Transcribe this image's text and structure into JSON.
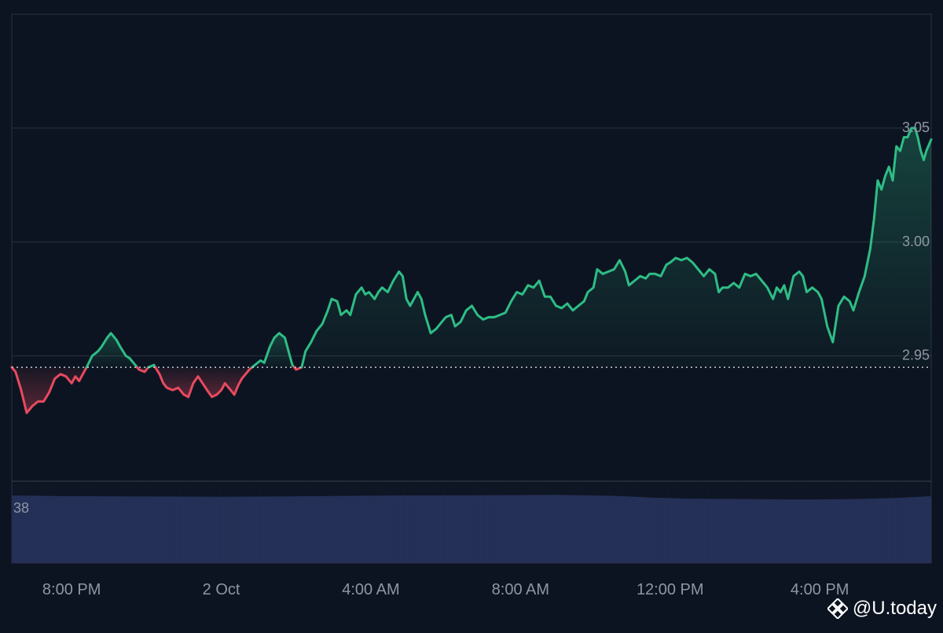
{
  "chart_data": {
    "type": "area",
    "baseline": 2.945,
    "ylim": [
      2.895,
      3.1
    ],
    "y_ticks": [
      {
        "value": 3.05,
        "label": "3.05"
      },
      {
        "value": 3.0,
        "label": "3.00"
      },
      {
        "value": 2.95,
        "label": "2.95"
      }
    ],
    "x_ticks": [
      {
        "t": 1.0,
        "label": "8:00 PM"
      },
      {
        "t": 5.0,
        "label": "2 Oct"
      },
      {
        "t": 9.0,
        "label": "4:00 AM"
      },
      {
        "t": 13.0,
        "label": "8:00 AM"
      },
      {
        "t": 17.0,
        "label": "12:00 PM"
      },
      {
        "t": 21.0,
        "label": "4:00 PM"
      }
    ],
    "xlim": [
      -0.6,
      23.98
    ],
    "price_points": [
      [
        -0.6,
        2.945
      ],
      [
        -0.5,
        2.943
      ],
      [
        -0.35,
        2.935
      ],
      [
        -0.2,
        2.925
      ],
      [
        -0.05,
        2.928
      ],
      [
        0.1,
        2.93
      ],
      [
        0.25,
        2.93
      ],
      [
        0.4,
        2.934
      ],
      [
        0.55,
        2.94
      ],
      [
        0.7,
        2.942
      ],
      [
        0.85,
        2.941
      ],
      [
        1.0,
        2.938
      ],
      [
        1.1,
        2.941
      ],
      [
        1.2,
        2.939
      ],
      [
        1.3,
        2.942
      ],
      [
        1.4,
        2.945
      ],
      [
        1.55,
        2.95
      ],
      [
        1.7,
        2.952
      ],
      [
        1.8,
        2.954
      ],
      [
        1.95,
        2.958
      ],
      [
        2.05,
        2.96
      ],
      [
        2.2,
        2.957
      ],
      [
        2.3,
        2.954
      ],
      [
        2.45,
        2.95
      ],
      [
        2.55,
        2.949
      ],
      [
        2.7,
        2.946
      ],
      [
        2.8,
        2.944
      ],
      [
        2.95,
        2.943
      ],
      [
        3.05,
        2.945
      ],
      [
        3.2,
        2.946
      ],
      [
        3.35,
        2.942
      ],
      [
        3.45,
        2.938
      ],
      [
        3.55,
        2.936
      ],
      [
        3.7,
        2.935
      ],
      [
        3.85,
        2.936
      ],
      [
        4.0,
        2.933
      ],
      [
        4.12,
        2.932
      ],
      [
        4.25,
        2.938
      ],
      [
        4.38,
        2.941
      ],
      [
        4.5,
        2.938
      ],
      [
        4.62,
        2.935
      ],
      [
        4.75,
        2.932
      ],
      [
        4.88,
        2.933
      ],
      [
        5.0,
        2.935
      ],
      [
        5.1,
        2.938
      ],
      [
        5.25,
        2.935
      ],
      [
        5.35,
        2.933
      ],
      [
        5.45,
        2.937
      ],
      [
        5.55,
        2.94
      ],
      [
        5.65,
        2.942
      ],
      [
        5.75,
        2.944
      ],
      [
        5.9,
        2.946
      ],
      [
        6.05,
        2.948
      ],
      [
        6.15,
        2.947
      ],
      [
        6.3,
        2.954
      ],
      [
        6.42,
        2.958
      ],
      [
        6.55,
        2.96
      ],
      [
        6.7,
        2.958
      ],
      [
        6.8,
        2.952
      ],
      [
        6.9,
        2.946
      ],
      [
        7.0,
        2.944
      ],
      [
        7.15,
        2.945
      ],
      [
        7.25,
        2.952
      ],
      [
        7.4,
        2.956
      ],
      [
        7.55,
        2.961
      ],
      [
        7.7,
        2.964
      ],
      [
        7.85,
        2.97
      ],
      [
        7.95,
        2.975
      ],
      [
        8.1,
        2.974
      ],
      [
        8.2,
        2.968
      ],
      [
        8.35,
        2.97
      ],
      [
        8.45,
        2.968
      ],
      [
        8.6,
        2.977
      ],
      [
        8.75,
        2.98
      ],
      [
        8.85,
        2.977
      ],
      [
        8.95,
        2.978
      ],
      [
        9.1,
        2.975
      ],
      [
        9.2,
        2.978
      ],
      [
        9.3,
        2.98
      ],
      [
        9.45,
        2.978
      ],
      [
        9.6,
        2.983
      ],
      [
        9.75,
        2.987
      ],
      [
        9.85,
        2.985
      ],
      [
        9.95,
        2.975
      ],
      [
        10.05,
        2.972
      ],
      [
        10.15,
        2.975
      ],
      [
        10.25,
        2.978
      ],
      [
        10.35,
        2.975
      ],
      [
        10.45,
        2.968
      ],
      [
        10.6,
        2.96
      ],
      [
        10.75,
        2.962
      ],
      [
        10.85,
        2.964
      ],
      [
        11.0,
        2.967
      ],
      [
        11.15,
        2.968
      ],
      [
        11.25,
        2.963
      ],
      [
        11.4,
        2.965
      ],
      [
        11.55,
        2.97
      ],
      [
        11.7,
        2.972
      ],
      [
        11.85,
        2.968
      ],
      [
        12.0,
        2.966
      ],
      [
        12.15,
        2.967
      ],
      [
        12.3,
        2.967
      ],
      [
        12.45,
        2.968
      ],
      [
        12.6,
        2.969
      ],
      [
        12.75,
        2.974
      ],
      [
        12.9,
        2.978
      ],
      [
        13.05,
        2.977
      ],
      [
        13.2,
        2.981
      ],
      [
        13.35,
        2.98
      ],
      [
        13.5,
        2.983
      ],
      [
        13.65,
        2.976
      ],
      [
        13.8,
        2.976
      ],
      [
        13.95,
        2.972
      ],
      [
        14.1,
        2.971
      ],
      [
        14.25,
        2.973
      ],
      [
        14.4,
        2.97
      ],
      [
        14.55,
        2.972
      ],
      [
        14.7,
        2.974
      ],
      [
        14.8,
        2.978
      ],
      [
        14.95,
        2.98
      ],
      [
        15.05,
        2.988
      ],
      [
        15.2,
        2.986
      ],
      [
        15.35,
        2.987
      ],
      [
        15.5,
        2.988
      ],
      [
        15.65,
        2.992
      ],
      [
        15.8,
        2.987
      ],
      [
        15.9,
        2.981
      ],
      [
        16.05,
        2.983
      ],
      [
        16.2,
        2.985
      ],
      [
        16.35,
        2.984
      ],
      [
        16.45,
        2.986
      ],
      [
        16.6,
        2.986
      ],
      [
        16.75,
        2.985
      ],
      [
        16.9,
        2.99
      ],
      [
        17.0,
        2.991
      ],
      [
        17.15,
        2.993
      ],
      [
        17.3,
        2.992
      ],
      [
        17.45,
        2.993
      ],
      [
        17.6,
        2.991
      ],
      [
        17.75,
        2.988
      ],
      [
        17.9,
        2.985
      ],
      [
        18.05,
        2.988
      ],
      [
        18.2,
        2.986
      ],
      [
        18.3,
        2.978
      ],
      [
        18.4,
        2.98
      ],
      [
        18.55,
        2.98
      ],
      [
        18.7,
        2.982
      ],
      [
        18.85,
        2.98
      ],
      [
        19.0,
        2.986
      ],
      [
        19.15,
        2.985
      ],
      [
        19.3,
        2.986
      ],
      [
        19.45,
        2.983
      ],
      [
        19.6,
        2.98
      ],
      [
        19.75,
        2.975
      ],
      [
        19.85,
        2.98
      ],
      [
        19.95,
        2.978
      ],
      [
        20.05,
        2.981
      ],
      [
        20.15,
        2.975
      ],
      [
        20.3,
        2.985
      ],
      [
        20.45,
        2.987
      ],
      [
        20.55,
        2.985
      ],
      [
        20.65,
        2.978
      ],
      [
        20.8,
        2.98
      ],
      [
        20.95,
        2.978
      ],
      [
        21.05,
        2.975
      ],
      [
        21.2,
        2.963
      ],
      [
        21.35,
        2.956
      ],
      [
        21.5,
        2.972
      ],
      [
        21.65,
        2.976
      ],
      [
        21.8,
        2.974
      ],
      [
        21.9,
        2.97
      ],
      [
        22.05,
        2.978
      ],
      [
        22.2,
        2.985
      ],
      [
        22.35,
        2.997
      ],
      [
        22.45,
        3.01
      ],
      [
        22.55,
        3.027
      ],
      [
        22.65,
        3.023
      ],
      [
        22.75,
        3.029
      ],
      [
        22.85,
        3.033
      ],
      [
        22.95,
        3.027
      ],
      [
        23.05,
        3.042
      ],
      [
        23.15,
        3.04
      ],
      [
        23.25,
        3.046
      ],
      [
        23.35,
        3.046
      ],
      [
        23.45,
        3.05
      ],
      [
        23.55,
        3.05
      ],
      [
        23.62,
        3.046
      ],
      [
        23.7,
        3.04
      ],
      [
        23.78,
        3.036
      ],
      [
        23.85,
        3.04
      ],
      [
        23.98,
        3.045
      ]
    ],
    "volume_label": "38",
    "volume_max": 46,
    "volume_points": [
      [
        -0.6,
        38.0
      ],
      [
        1.0,
        37.6
      ],
      [
        3.0,
        37.4
      ],
      [
        5.0,
        37.3
      ],
      [
        6.5,
        37.4
      ],
      [
        8.0,
        37.7
      ],
      [
        10.0,
        38.0
      ],
      [
        12.0,
        38.1
      ],
      [
        14.0,
        38.3
      ],
      [
        15.5,
        37.8
      ],
      [
        16.5,
        36.8
      ],
      [
        17.5,
        36.2
      ],
      [
        19.0,
        36.0
      ],
      [
        20.0,
        35.8
      ],
      [
        21.0,
        35.8
      ],
      [
        22.0,
        36.0
      ],
      [
        23.0,
        36.6
      ],
      [
        23.98,
        37.6
      ]
    ],
    "colors": {
      "up": "#2ebd85",
      "down": "#e84a5f",
      "grid": "#2a3140",
      "axis_text": "#8f96a3",
      "volume": "#26315a",
      "baseline_dots": "#c8cdd6",
      "background": "#0d1421"
    }
  },
  "watermark": {
    "text": "@U.today",
    "logo_icon": "binance-diamond-logo"
  }
}
